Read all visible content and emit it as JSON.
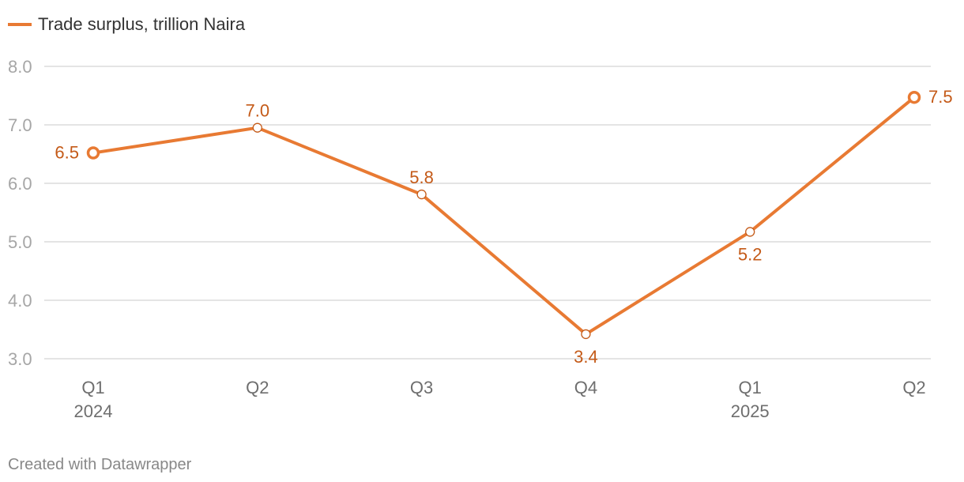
{
  "chart_data": {
    "type": "line",
    "legend": {
      "position": "top-left"
    },
    "categories": [
      {
        "label": "Q1",
        "sublabel": "2024"
      },
      {
        "label": "Q2",
        "sublabel": ""
      },
      {
        "label": "Q3",
        "sublabel": ""
      },
      {
        "label": "Q4",
        "sublabel": ""
      },
      {
        "label": "Q1",
        "sublabel": "2025"
      },
      {
        "label": "Q2",
        "sublabel": ""
      }
    ],
    "series": [
      {
        "name": "Trade surplus, trillion Naira",
        "color": "#e87a33",
        "values": [
          6.52,
          6.95,
          5.81,
          3.42,
          5.17,
          7.47
        ],
        "labels": [
          "6.5",
          "7.0",
          "5.8",
          "3.4",
          "5.2",
          "7.5"
        ],
        "label_positions": [
          "left",
          "above",
          "above",
          "below",
          "below",
          "right"
        ]
      }
    ],
    "ylim": [
      3.0,
      8.0
    ],
    "yticks": [
      {
        "value": 8.0,
        "label": "8.0"
      },
      {
        "value": 7.0,
        "label": "7.0"
      },
      {
        "value": 6.0,
        "label": "6.0"
      },
      {
        "value": 5.0,
        "label": "5.0"
      },
      {
        "value": 4.0,
        "label": "4.0"
      },
      {
        "value": 3.0,
        "label": "3.0"
      }
    ],
    "grid": true,
    "label_color": "#c45a18"
  },
  "footer": {
    "credit": "Created with Datawrapper"
  }
}
